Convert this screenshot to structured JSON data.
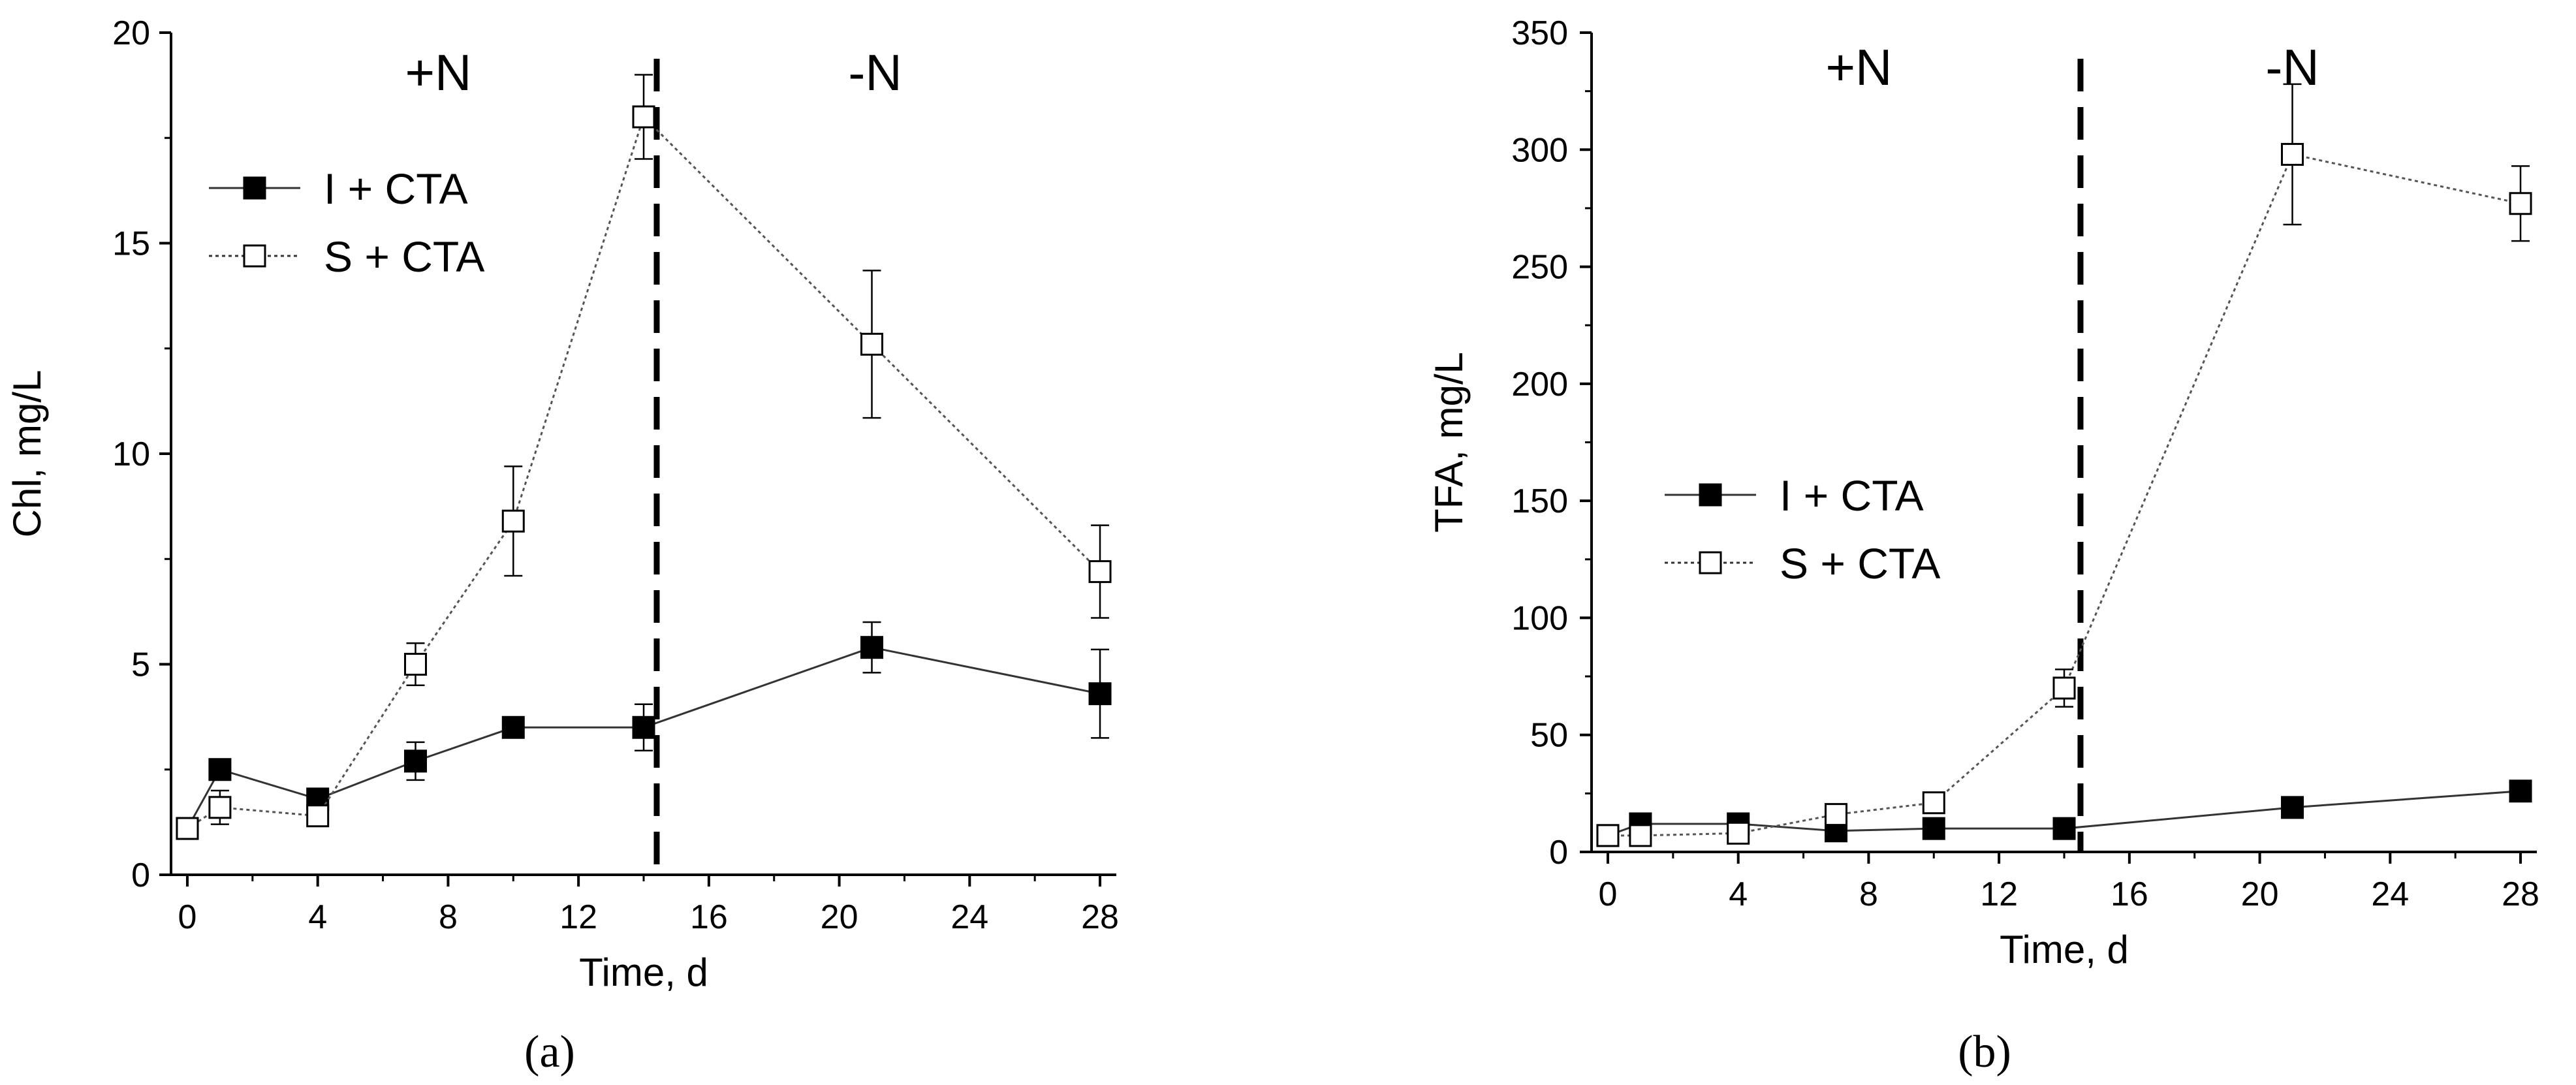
{
  "chart_data": [
    {
      "type": "line",
      "panel_label": "(a)",
      "xlabel": "Time, d",
      "ylabel": "Chl, mg/L",
      "xlim": [
        -0.5,
        28.5
      ],
      "ylim": [
        0,
        20
      ],
      "xticks": [
        0,
        4,
        8,
        12,
        16,
        20,
        24,
        28
      ],
      "yticks": [
        0,
        5,
        10,
        15,
        20
      ],
      "grid": false,
      "legend_position": "top-left",
      "annotations": [
        {
          "text": "+N",
          "x": 7.7,
          "y": 19.1
        },
        {
          "text": "-N",
          "x": 21.1,
          "y": 19.1
        }
      ],
      "divider_x": 14.4,
      "series": [
        {
          "name": "I + CTA",
          "marker": "filled-square",
          "line": "solid",
          "x": [
            0,
            1,
            4,
            7,
            10,
            14,
            21,
            28
          ],
          "y": [
            1.1,
            2.5,
            1.8,
            2.7,
            3.5,
            3.5,
            5.4,
            4.3
          ],
          "err": [
            0.2,
            0.2,
            0.2,
            0.45,
            0.1,
            0.55,
            0.6,
            1.05
          ]
        },
        {
          "name": "S + CTA",
          "marker": "open-square",
          "line": "dotted",
          "x": [
            0,
            1,
            4,
            7,
            10,
            14,
            21,
            28
          ],
          "y": [
            1.1,
            1.6,
            1.4,
            5.0,
            8.4,
            18.0,
            12.6,
            7.2
          ],
          "err": [
            0.15,
            0.4,
            0.2,
            0.5,
            1.3,
            1.0,
            1.75,
            1.1
          ]
        }
      ]
    },
    {
      "type": "line",
      "panel_label": "(b)",
      "xlabel": "Time, d",
      "ylabel": "TFA, mg/L",
      "xlim": [
        -0.5,
        28.5
      ],
      "ylim": [
        0,
        350
      ],
      "xticks": [
        0,
        4,
        8,
        12,
        16,
        20,
        24,
        28
      ],
      "yticks": [
        0,
        50,
        100,
        150,
        200,
        250,
        300,
        350
      ],
      "grid": false,
      "legend_position": "center-left",
      "annotations": [
        {
          "text": "+N",
          "x": 7.7,
          "y": 336
        },
        {
          "text": "-N",
          "x": 21.0,
          "y": 336
        }
      ],
      "divider_x": 14.5,
      "series": [
        {
          "name": "I + CTA",
          "marker": "filled-square",
          "line": "solid",
          "x": [
            0,
            1,
            4,
            7,
            10,
            14,
            21,
            28
          ],
          "y": [
            7,
            12,
            12,
            9,
            10,
            10,
            19,
            26
          ],
          "err": [
            1,
            1,
            1,
            1,
            1,
            1,
            2,
            3
          ]
        },
        {
          "name": "S + CTA",
          "marker": "open-square",
          "line": "dotted",
          "x": [
            0,
            1,
            4,
            7,
            10,
            14,
            21,
            28
          ],
          "y": [
            7,
            7,
            8,
            16,
            21,
            70,
            298,
            277
          ],
          "err": [
            1,
            1,
            1,
            2,
            3,
            8,
            30,
            16
          ]
        }
      ]
    }
  ]
}
